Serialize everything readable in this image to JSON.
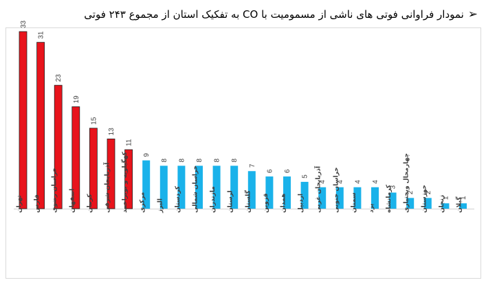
{
  "title": {
    "arrow": "➢",
    "text": "نمودار فراوانی فوتی های ناشی از مسمومیت با CO به تفکیک استان از مجموع ۲۴۳ فوتی"
  },
  "colors": {
    "highlight": "#e8141c",
    "normal": "#1ab2ea",
    "axis": "#d0d0d0"
  },
  "chart_data": {
    "type": "bar",
    "title": "نمودار فراوانی فوتی های ناشی از مسمومیت با CO به تفکیک استان از مجموع ۲۴۳ فوتی",
    "xlabel": "",
    "ylabel": "",
    "ylim": [
      0,
      33
    ],
    "grid": false,
    "legend": "none",
    "categories": [
      "تهران",
      "فارس",
      "خراسان رضوی",
      "اصفهان",
      "کرمان",
      "آذربایجان شرقی",
      "کهگیلویه و بویراحمد",
      "مرکزی",
      "البرز",
      "کردستان",
      "خراسان شمالی",
      "مازندران",
      "لرستان",
      "گلستان",
      "قزوین",
      "همدان",
      "اردبیل",
      "آذربایجان غربی",
      "خراسان جنوبی",
      "سمنان",
      "یزد",
      "کرمانشاه",
      "چهارمحال وبختیاری",
      "خوزستان",
      "زنجان",
      "گیلان"
    ],
    "values": [
      33,
      31,
      23,
      19,
      15,
      13,
      11,
      9,
      8,
      8,
      8,
      8,
      8,
      7,
      6,
      6,
      5,
      4,
      4,
      4,
      4,
      3,
      2,
      2,
      1,
      1
    ],
    "highlight_count": 7,
    "data_labels": [
      "33",
      "31",
      "23",
      "19",
      "15",
      "13",
      "11",
      "9",
      "8",
      "8",
      "8",
      "8",
      "8",
      "7",
      "6",
      "6",
      "5",
      "4",
      "4",
      "4",
      "4",
      "3",
      "2",
      "2",
      "1",
      "1"
    ]
  }
}
